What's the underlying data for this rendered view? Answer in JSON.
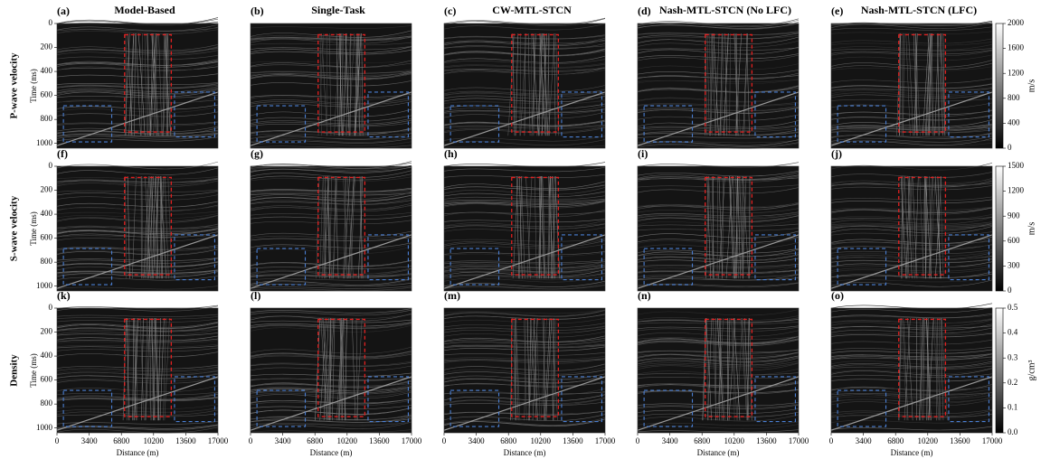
{
  "columns": [
    "Model-Based",
    "Single-Task",
    "CW-MTL-STCN",
    "Nash-MTL-STCN (No LFC)",
    "Nash-MTL-STCN (LFC)"
  ],
  "rows": [
    {
      "label": "P-wave velocity",
      "panels": [
        "(a)",
        "(b)",
        "(c)",
        "(d)",
        "(e)"
      ],
      "colorbar": {
        "unit": "m/s",
        "lim": [
          0,
          2000
        ],
        "ticks": [
          0,
          400,
          800,
          1200,
          1600,
          2000
        ]
      }
    },
    {
      "label": "S-wave velocity",
      "panels": [
        "(f)",
        "(g)",
        "(h)",
        "(i)",
        "(j)"
      ],
      "colorbar": {
        "unit": "m/s",
        "lim": [
          0,
          1500
        ],
        "ticks": [
          0,
          300,
          600,
          900,
          1200,
          1500
        ]
      }
    },
    {
      "label": "Density",
      "panels": [
        "(k)",
        "(l)",
        "(m)",
        "(n)",
        "(o)"
      ],
      "colorbar": {
        "unit": "g/cm³",
        "lim": [
          0,
          0.5
        ],
        "ticks": [
          {
            "value": 0,
            "label": "0.0"
          },
          0.1,
          0.2,
          0.3,
          0.4,
          0.5
        ]
      }
    }
  ],
  "y_axis": {
    "label": "Time (ms)",
    "lim": [
      0,
      1040
    ],
    "ticks": [
      0,
      200,
      400,
      600,
      800,
      1000
    ]
  },
  "x_axis": {
    "label": "Distance (m)",
    "lim": [
      0,
      17000
    ],
    "ticks": [
      0,
      3400,
      6800,
      10200,
      13600,
      17000
    ]
  }
}
